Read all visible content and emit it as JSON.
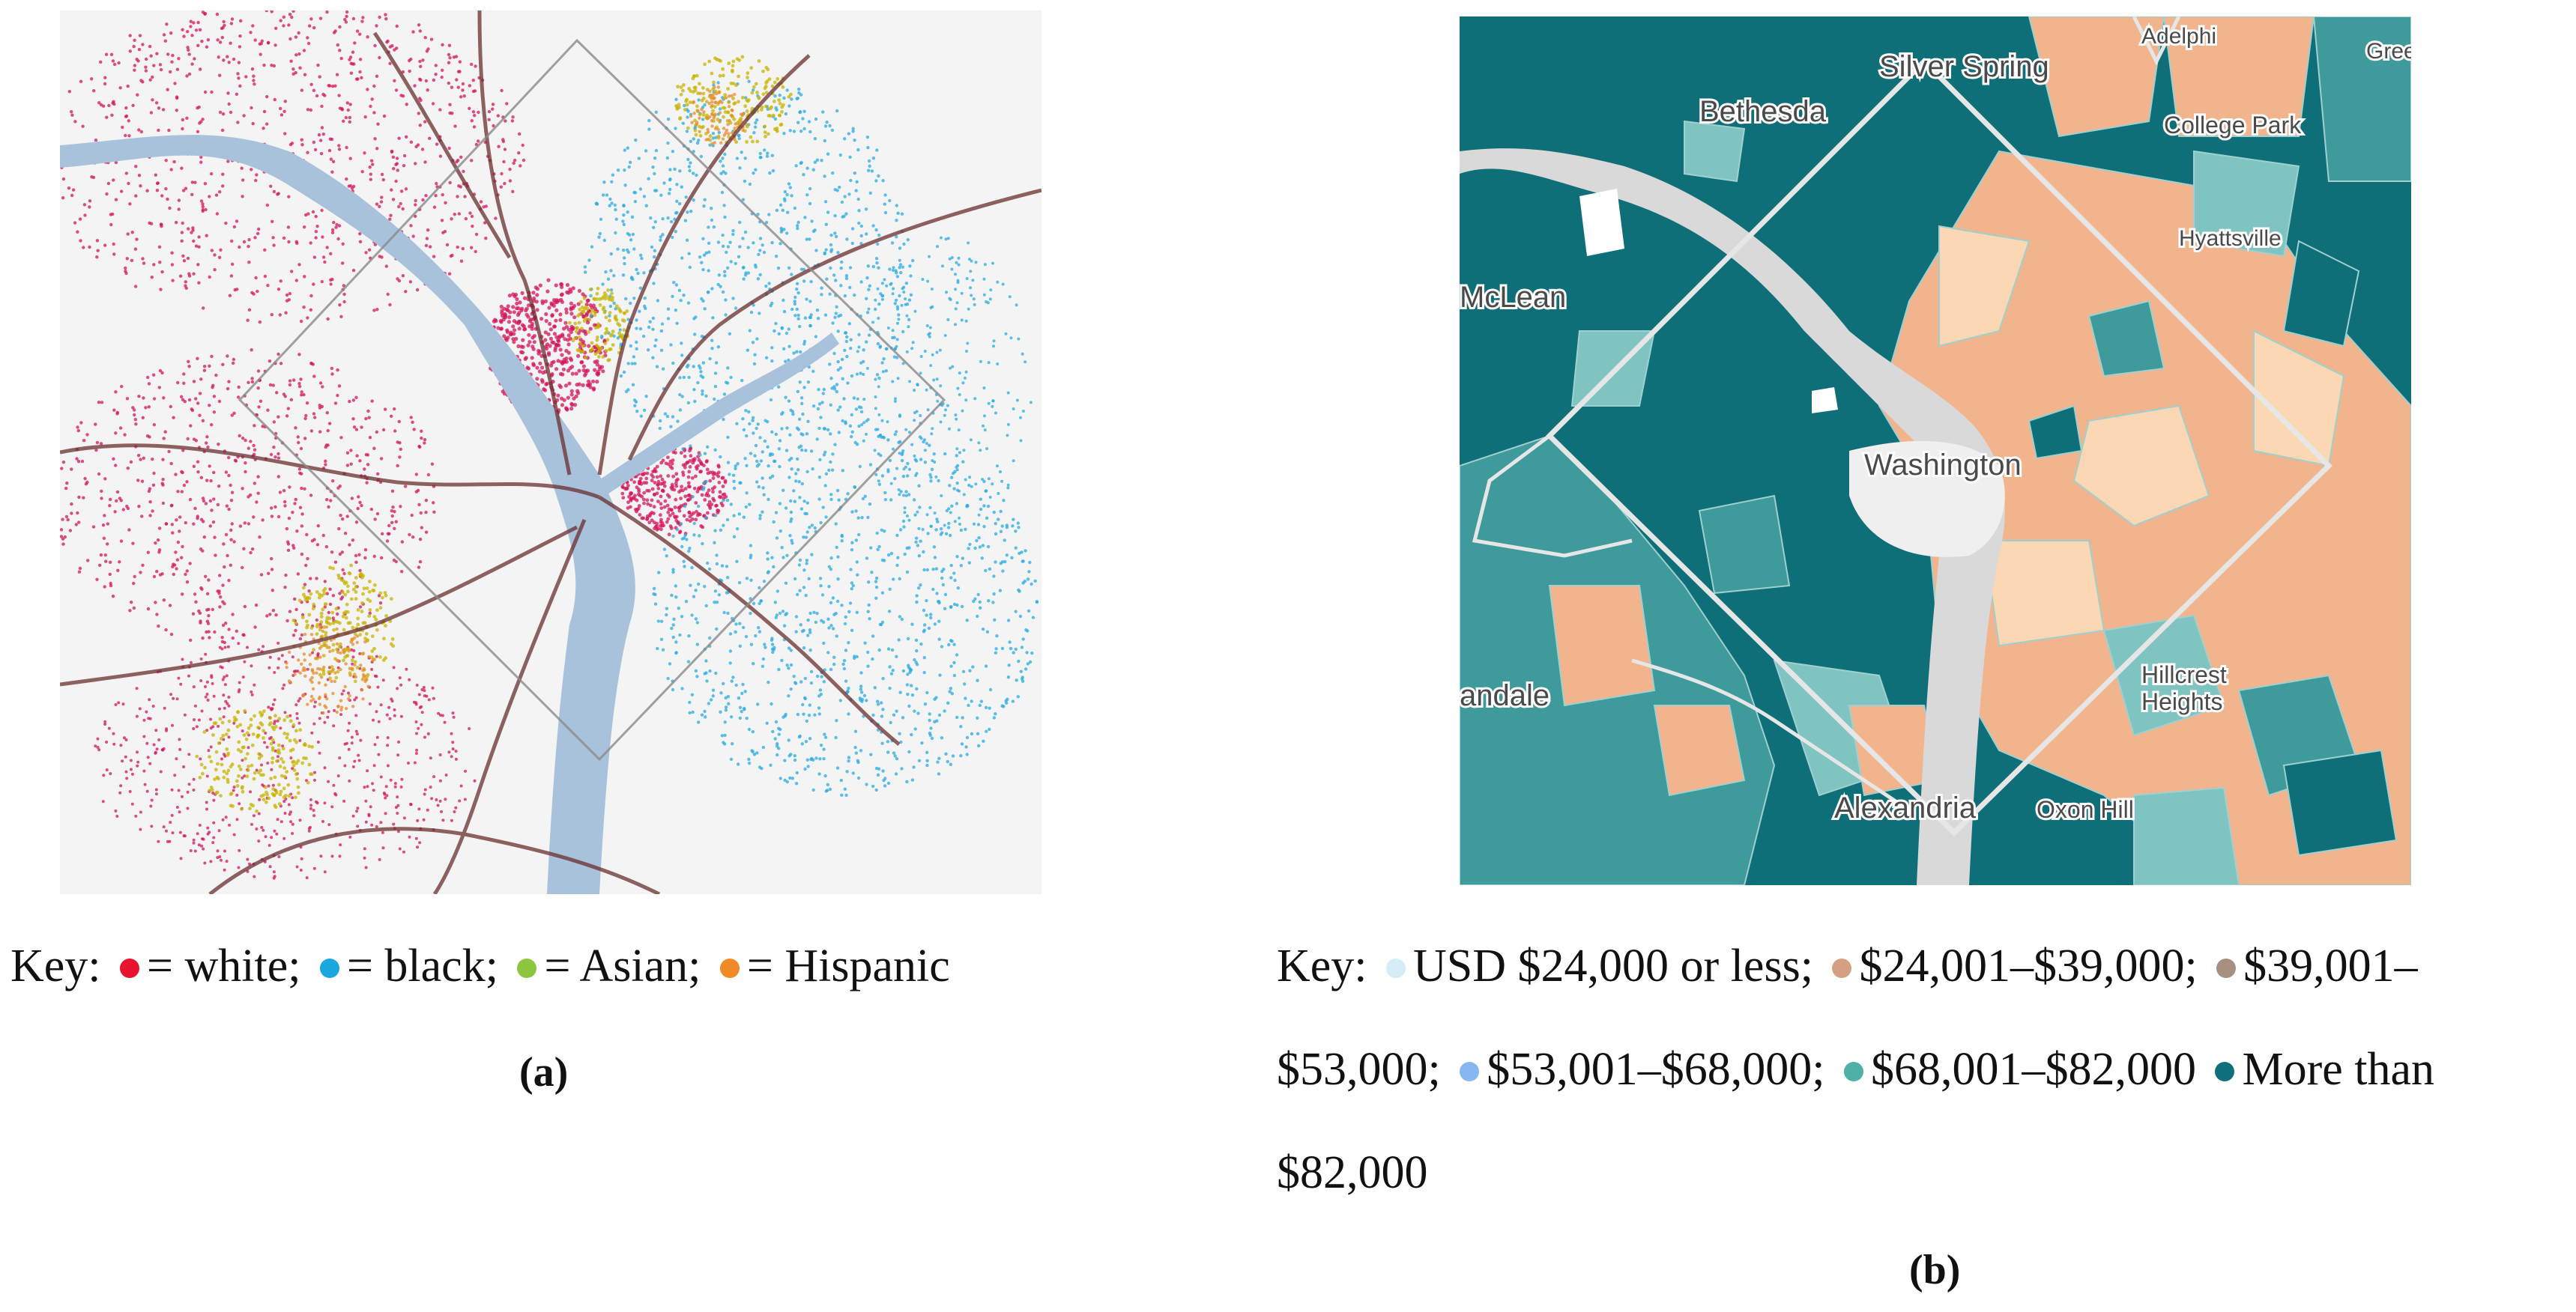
{
  "panel_a": {
    "label": "(a)",
    "key": {
      "prefix": "Key:",
      "items": [
        {
          "color": "#e8132c",
          "text": "= white;"
        },
        {
          "color": "#1aa7e0",
          "text": "= black;"
        },
        {
          "color": "#8cc63f",
          "text": "= Asian;"
        },
        {
          "color": "#f08a24",
          "text": "= Hispanic"
        }
      ]
    },
    "colors": {
      "water": "#a9c2dc",
      "white": "#d4145a",
      "black": "#29abe2",
      "asian": "#c8b400",
      "hispanic": "#e98a2c",
      "roads": "#6b2f2f"
    }
  },
  "panel_b": {
    "label": "(b)",
    "key": {
      "prefix": "Key:",
      "line1": [
        {
          "color": "#d6ecf6",
          "text": "USD $24,000 or less;"
        },
        {
          "color": "#d5a081",
          "text": "$24,001–$39,000;"
        },
        {
          "color": "#a89080",
          "text": "$39,001–"
        }
      ],
      "line2_start": "$53,000;",
      "line2": [
        {
          "color": "#86b7f0",
          "text": "$53,001–$68,000;"
        },
        {
          "color": "#4fb0a8",
          "text": "$68,001–$82,000"
        },
        {
          "color": "#0f6f7a",
          "text": "More than"
        }
      ],
      "line3": "$82,000"
    },
    "places": {
      "silver_spring": "Silver Spring",
      "adelphi": "Adelphi",
      "gree": "Gree",
      "bethesda": "Bethesda",
      "college_park": "College Park",
      "hyattsville": "Hyattsville",
      "mclean": "McLean",
      "washington": "Washington",
      "andale": "andale",
      "hillcrest": "Hillcrest",
      "heights": "Heights",
      "alexandria": "Alexandria",
      "oxon_hill": "Oxon Hill"
    },
    "colors": {
      "high": "#0e6f78",
      "upper": "#3f9a9c",
      "mid": "#7fc4c0",
      "low": "#f2b48c",
      "lowest": "#fbd7b4",
      "water": "#d9d9d9"
    }
  }
}
